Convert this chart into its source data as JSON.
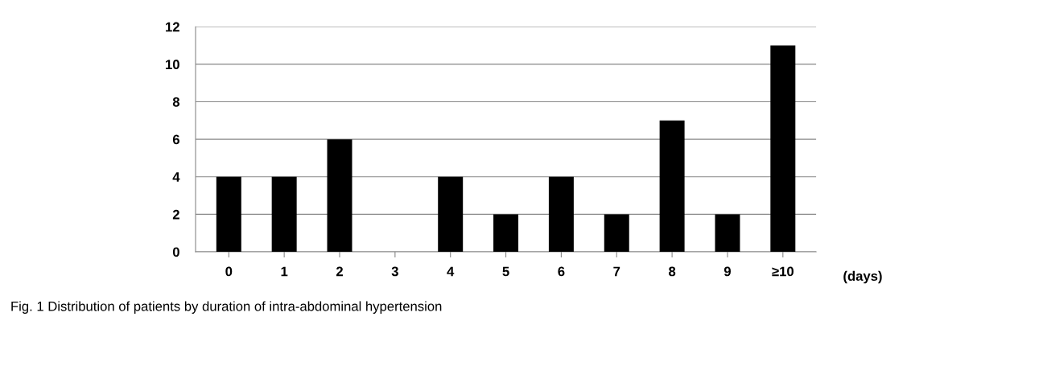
{
  "chart_data": {
    "type": "bar",
    "categories": [
      "0",
      "1",
      "2",
      "3",
      "4",
      "5",
      "6",
      "7",
      "8",
      "9",
      "≥10"
    ],
    "values": [
      4,
      4,
      6,
      0,
      4,
      2,
      4,
      2,
      7,
      2,
      11
    ],
    "color": "#000000",
    "xlabel": "(days)",
    "ylim": [
      0,
      12
    ],
    "yticks": [
      0,
      2,
      4,
      6,
      8,
      10,
      12
    ],
    "grid": "y",
    "annotations": [
      "Fig. 1 Distribution of patients by duration of intra-abdominal hypertension"
    ]
  }
}
